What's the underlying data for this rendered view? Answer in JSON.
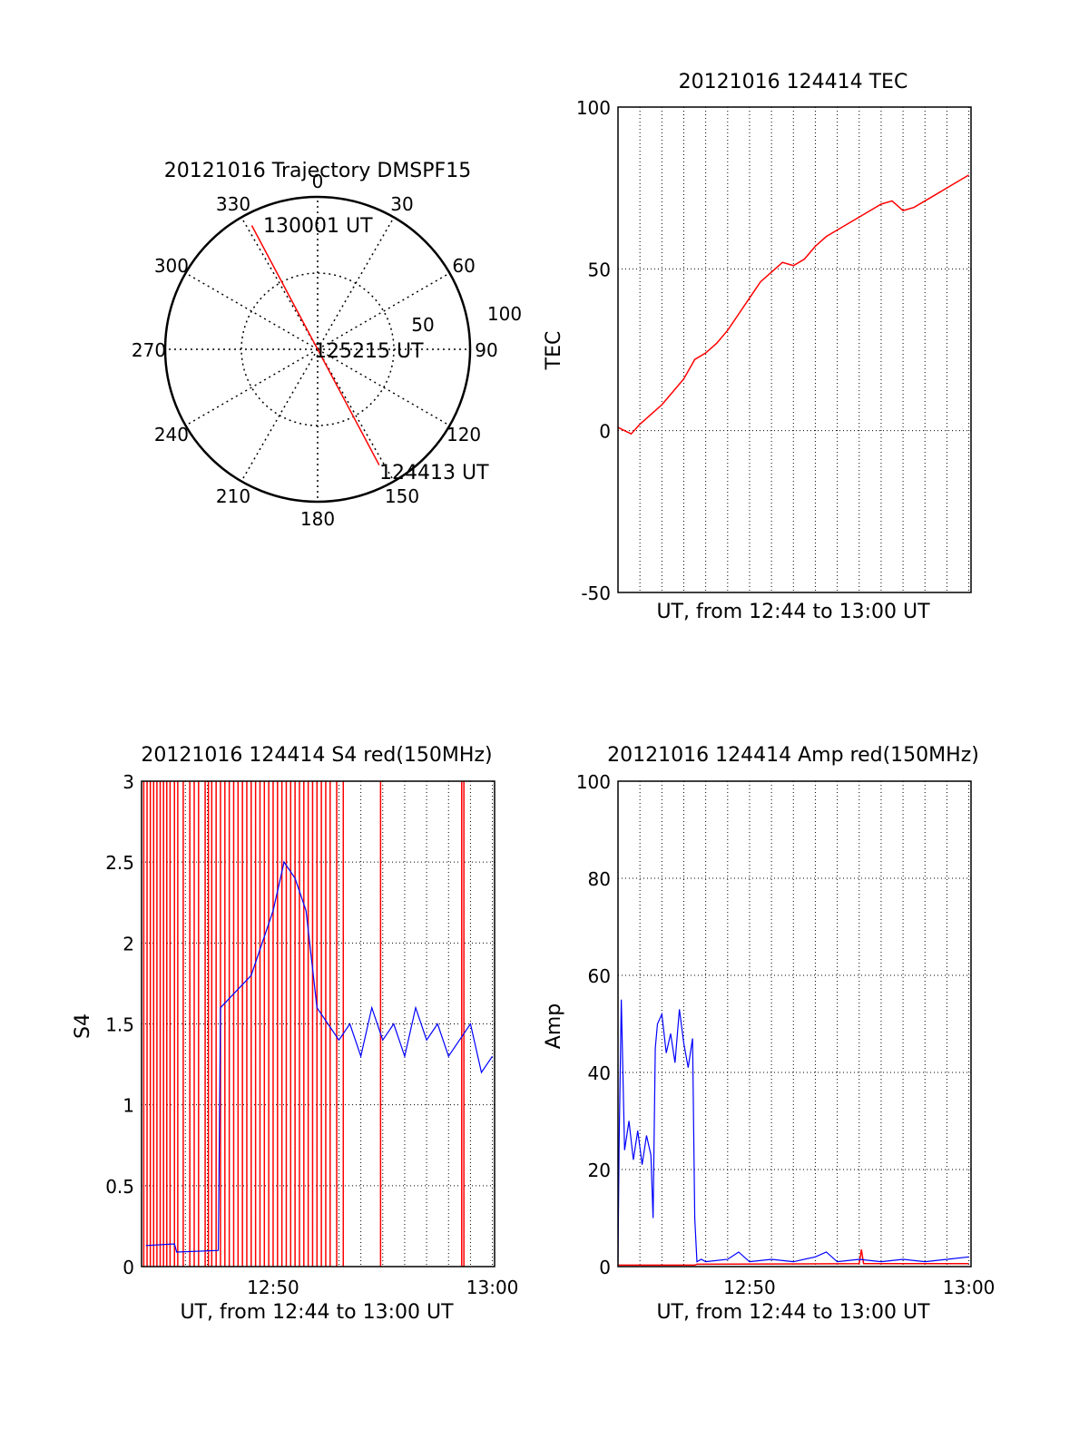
{
  "figure": {
    "background": "#ffffff"
  },
  "colors": {
    "red": "#ff0000",
    "blue": "#0000ff",
    "axis": "#000000",
    "grid": "#000000"
  },
  "chart_data": [
    {
      "id": "trajectory",
      "type": "polar",
      "title": "20121016 Trajectory DMSPF15",
      "angle_labels": [
        "0",
        "30",
        "60",
        "90",
        "120",
        "150",
        "180",
        "210",
        "240",
        "270",
        "300",
        "330"
      ],
      "radius_labels": [
        "50",
        "100"
      ],
      "r_max": 100,
      "ring": 50,
      "grid": true,
      "track": [
        {
          "az": 332,
          "r": 92,
          "label": "130001 UT"
        },
        {
          "az": 90,
          "r": 0,
          "label": "125215 UT"
        },
        {
          "az": 152,
          "r": 86,
          "label": "124413 UT"
        }
      ]
    },
    {
      "id": "tec",
      "type": "line",
      "title": "20121016 124414 TEC",
      "xlabel": "UT, from 12:44 to 13:00 UT",
      "ylabel": "TEC",
      "xlim": [
        0,
        16.1
      ],
      "ylim": [
        -50,
        100
      ],
      "yticks": [
        -50,
        0,
        50,
        100
      ],
      "xticks": [],
      "grid": true,
      "series": [
        {
          "color": "#ff0000",
          "x": [
            0.0,
            0.3,
            0.6,
            1.0,
            1.5,
            2.0,
            2.5,
            3.0,
            3.5,
            4.0,
            4.5,
            5.0,
            5.5,
            6.0,
            6.5,
            7.0,
            7.5,
            8.0,
            8.5,
            9.0,
            9.5,
            10.0,
            10.5,
            11.0,
            11.5,
            12.0,
            12.5,
            13.0,
            13.5,
            14.0,
            14.5,
            15.0,
            15.5,
            16.0
          ],
          "y": [
            1,
            0,
            -1,
            2,
            5,
            8,
            12,
            16,
            22,
            24,
            27,
            31,
            36,
            41,
            46,
            49,
            52,
            51,
            53,
            57,
            60,
            62,
            64,
            66,
            68,
            70,
            71,
            68,
            69,
            71,
            73,
            75,
            77,
            79
          ]
        }
      ]
    },
    {
      "id": "s4",
      "type": "line",
      "title": "20121016 124414 S4 red(150MHz)",
      "xlabel": "UT, from 12:44 to 13:00 UT",
      "ylabel": "S4",
      "xlim": [
        0,
        16.1
      ],
      "ylim": [
        0,
        3
      ],
      "yticks": [
        "0",
        "0.5",
        "1",
        "1.5",
        "2",
        "2.5",
        "3"
      ],
      "xticks": [
        {
          "x": 6,
          "label": "12:50"
        },
        {
          "x": 16,
          "label": "13:00"
        }
      ],
      "grid": true,
      "series": [
        {
          "color": "#ff0000",
          "spikes": [
            0.1,
            0.25,
            0.4,
            0.55,
            0.7,
            0.85,
            1.0,
            1.15,
            1.3,
            1.5,
            1.65,
            1.9,
            2.2,
            2.4,
            2.6,
            2.9,
            3.05,
            3.2,
            3.4,
            3.6,
            3.8,
            4.0,
            4.2,
            4.4,
            4.6,
            4.8,
            5.0,
            5.2,
            5.4,
            5.6,
            5.8,
            6.0,
            6.2,
            6.4,
            6.6,
            6.8,
            7.0,
            7.2,
            7.4,
            7.6,
            7.8,
            8.0,
            8.2,
            8.4,
            8.6,
            8.9,
            9.2,
            10.9,
            14.6,
            14.7
          ]
        },
        {
          "color": "#0000ff",
          "x": [
            0.2,
            1.5,
            1.6,
            3.5,
            3.6,
            5.0,
            5.5,
            6.0,
            6.5,
            7.0,
            7.5,
            8.0,
            8.5,
            9.0,
            9.5,
            10.0,
            10.5,
            11.0,
            11.5,
            12.0,
            12.5,
            13.0,
            13.5,
            14.0,
            14.5,
            15.0,
            15.5,
            16.0
          ],
          "y": [
            0.13,
            0.14,
            0.09,
            0.1,
            1.6,
            1.8,
            2.0,
            2.2,
            2.5,
            2.4,
            2.2,
            1.6,
            1.5,
            1.4,
            1.5,
            1.3,
            1.6,
            1.4,
            1.5,
            1.3,
            1.6,
            1.4,
            1.5,
            1.3,
            1.4,
            1.5,
            1.2,
            1.3
          ]
        }
      ]
    },
    {
      "id": "amp",
      "type": "line",
      "title": "20121016 124414 Amp red(150MHz)",
      "xlabel": "UT, from 12:44 to 13:00 UT",
      "ylabel": "Amp",
      "xlim": [
        0,
        16.1
      ],
      "ylim": [
        0,
        100
      ],
      "yticks": [
        "0",
        "20",
        "40",
        "60",
        "80",
        "100"
      ],
      "xticks": [
        {
          "x": 6,
          "label": "12:50"
        },
        {
          "x": 16,
          "label": "13:00"
        }
      ],
      "grid": true,
      "series": [
        {
          "color": "#ff0000",
          "x": [
            0.0,
            3.5,
            3.6,
            11.0,
            11.1,
            11.2,
            16.0
          ],
          "y": [
            0.3,
            0.3,
            0.5,
            0.6,
            3.5,
            0.6,
            0.6
          ]
        },
        {
          "color": "#0000ff",
          "x": [
            0.0,
            0.05,
            0.15,
            0.3,
            0.5,
            0.7,
            0.9,
            1.1,
            1.3,
            1.5,
            1.6,
            1.7,
            1.8,
            2.0,
            2.2,
            2.4,
            2.6,
            2.8,
            3.0,
            3.2,
            3.4,
            3.5,
            3.6,
            3.8,
            4.0,
            5.0,
            5.5,
            6.0,
            7.0,
            8.0,
            9.0,
            9.5,
            10.0,
            11.0,
            12.0,
            13.0,
            14.0,
            15.0,
            16.0
          ],
          "y": [
            1,
            25,
            55,
            24,
            30,
            22,
            28,
            21,
            27,
            23,
            10,
            45,
            50,
            52,
            44,
            48,
            42,
            53,
            46,
            41,
            47,
            10,
            1,
            1.5,
            1,
            1.5,
            3,
            1,
            1.5,
            1,
            2,
            3,
            1,
            1.5,
            1,
            1.5,
            1,
            1.5,
            2
          ]
        }
      ]
    }
  ]
}
